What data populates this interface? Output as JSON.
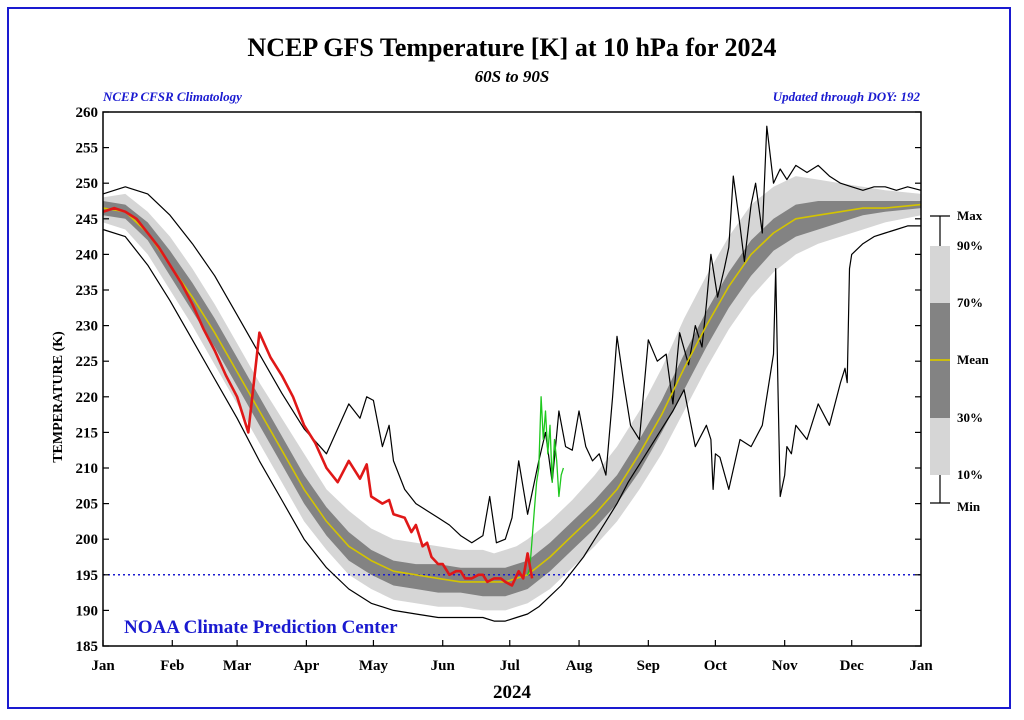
{
  "colors": {
    "frame": "#1a1ad0",
    "blue_text": "#1a1ad0",
    "band_outer": "#d6d6d6",
    "band_inner": "#838383",
    "mean": "#d4c400",
    "observed": "#e01818",
    "forecast": "#1ec81e",
    "reference": "#1a1ad0",
    "extreme": "#000000"
  },
  "chart_data": {
    "type": "line",
    "title": "NCEP GFS Temperature [K] at 10 hPa for 2024",
    "subtitle": "60S to 90S",
    "left_note": "NCEP CFSR Climatology",
    "right_note": "Updated through DOY: 192",
    "watermark": "NOAA Climate Prediction Center",
    "xlabel": "2024",
    "ylabel": "TEMPERATURE (K)",
    "xlim": [
      0,
      366
    ],
    "ylim": [
      185,
      260
    ],
    "y_ticks": [
      185,
      190,
      195,
      200,
      205,
      210,
      215,
      220,
      225,
      230,
      235,
      240,
      245,
      250,
      255,
      260
    ],
    "months": [
      {
        "label": "Jan",
        "doy": 0
      },
      {
        "label": "Feb",
        "doy": 31
      },
      {
        "label": "Mar",
        "doy": 60
      },
      {
        "label": "Apr",
        "doy": 91
      },
      {
        "label": "May",
        "doy": 121
      },
      {
        "label": "Jun",
        "doy": 152
      },
      {
        "label": "Jul",
        "doy": 182
      },
      {
        "label": "Aug",
        "doy": 213
      },
      {
        "label": "Sep",
        "doy": 244
      },
      {
        "label": "Oct",
        "doy": 274
      },
      {
        "label": "Nov",
        "doy": 305
      },
      {
        "label": "Dec",
        "doy": 335
      },
      {
        "label": "Jan",
        "doy": 366
      }
    ],
    "reference_line": 195,
    "legend": {
      "labels": [
        "Max",
        "90%",
        "70%",
        "Mean",
        "30%",
        "10%",
        "Min"
      ]
    },
    "series": [
      {
        "name": "Max",
        "x": [
          0,
          10,
          20,
          30,
          40,
          50,
          60,
          70,
          80,
          90,
          100,
          110,
          115,
          118,
          121,
          125,
          128,
          130,
          135,
          140,
          145,
          150,
          155,
          160,
          165,
          170,
          173,
          176,
          180,
          183,
          186,
          190,
          195,
          198,
          201,
          204,
          207,
          210,
          213,
          216,
          219,
          222,
          225,
          228,
          230,
          233,
          236,
          240,
          244,
          248,
          252,
          255,
          258,
          262,
          265,
          268,
          270,
          272,
          275,
          278,
          280,
          282,
          285,
          287,
          290,
          292,
          295,
          297,
          300,
          303,
          306,
          310,
          315,
          320,
          325,
          330,
          335,
          340,
          345,
          350,
          355,
          360,
          366
        ],
        "y": [
          248.5,
          249.5,
          248.5,
          245.5,
          241.5,
          237,
          231.5,
          226,
          220.5,
          215.5,
          212,
          219,
          217,
          220,
          219.5,
          213,
          216,
          211,
          207,
          205,
          204,
          203,
          202,
          200.5,
          199.5,
          200.5,
          206,
          199.5,
          200,
          203,
          211,
          203.5,
          211,
          215,
          208,
          218,
          213,
          212.5,
          218,
          213,
          211,
          212,
          209,
          220,
          228.5,
          222,
          216,
          214,
          228,
          225,
          226,
          219,
          229,
          224.5,
          230,
          227,
          233,
          240,
          234,
          238,
          241,
          251,
          244,
          239,
          247,
          250,
          243,
          258,
          250,
          252,
          250.5,
          252.5,
          251.5,
          252.5,
          251,
          250,
          249.5,
          249,
          249.5,
          249.5,
          249,
          249.5,
          249
        ]
      },
      {
        "name": "90%",
        "x": [
          0,
          10,
          20,
          30,
          40,
          50,
          60,
          70,
          80,
          90,
          100,
          110,
          120,
          130,
          140,
          150,
          160,
          170,
          175,
          180,
          185,
          190,
          200,
          210,
          220,
          230,
          240,
          250,
          260,
          270,
          280,
          290,
          300,
          310,
          320,
          330,
          340,
          350,
          366
        ],
        "y": [
          248,
          248.5,
          246,
          242.5,
          238,
          233,
          227.5,
          222,
          217,
          212,
          207,
          204,
          201.5,
          200,
          199.5,
          199,
          198.5,
          198.5,
          198,
          198.5,
          199,
          200,
          202.5,
          205.5,
          209,
          213,
          218,
          224,
          231,
          237,
          242.5,
          247,
          249.5,
          251,
          250.5,
          250,
          249.5,
          249,
          248.5
        ]
      },
      {
        "name": "70%",
        "x": [
          0,
          10,
          20,
          30,
          40,
          50,
          60,
          70,
          80,
          90,
          100,
          110,
          120,
          130,
          140,
          150,
          160,
          170,
          175,
          180,
          185,
          190,
          200,
          210,
          220,
          230,
          240,
          250,
          260,
          270,
          280,
          290,
          300,
          310,
          320,
          330,
          340,
          350,
          366
        ],
        "y": [
          247.5,
          247,
          244.5,
          240.5,
          236,
          231,
          225.5,
          220,
          214.5,
          209,
          204.5,
          201,
          198.5,
          197,
          196.5,
          196.5,
          196,
          196,
          196,
          196,
          196.5,
          197,
          199.5,
          202.5,
          205.5,
          209,
          214,
          219.5,
          226,
          232,
          237.5,
          242,
          245,
          247,
          247.5,
          247.5,
          247.5,
          247.5,
          247.5
        ]
      },
      {
        "name": "Mean",
        "x": [
          0,
          10,
          20,
          30,
          40,
          50,
          60,
          70,
          80,
          90,
          100,
          110,
          120,
          130,
          140,
          150,
          160,
          170,
          175,
          180,
          185,
          190,
          200,
          210,
          220,
          230,
          240,
          250,
          260,
          270,
          280,
          290,
          300,
          310,
          320,
          330,
          340,
          350,
          366
        ],
        "y": [
          246.5,
          246,
          243,
          238.5,
          234,
          229,
          223.5,
          218,
          212.5,
          207,
          202.5,
          199,
          197,
          195.5,
          195,
          194.5,
          194,
          194,
          194,
          194,
          194.5,
          195,
          197.5,
          200.5,
          203.5,
          207,
          212,
          217.5,
          224,
          230,
          235.5,
          240,
          243,
          245,
          245.5,
          246,
          246.5,
          246.5,
          247
        ]
      },
      {
        "name": "30%",
        "x": [
          0,
          10,
          20,
          30,
          40,
          50,
          60,
          70,
          80,
          90,
          100,
          110,
          120,
          130,
          140,
          150,
          160,
          170,
          175,
          180,
          185,
          190,
          200,
          210,
          220,
          230,
          240,
          250,
          260,
          270,
          280,
          290,
          300,
          310,
          320,
          330,
          340,
          350,
          366
        ],
        "y": [
          245.5,
          245,
          242,
          237,
          232,
          227,
          221.5,
          216,
          210.5,
          205,
          200.5,
          197,
          195,
          193.5,
          193,
          192.5,
          192.5,
          192,
          192,
          192,
          192.5,
          193,
          195.5,
          198.5,
          201.5,
          205,
          209.5,
          215,
          221,
          227,
          232.5,
          237,
          240.5,
          242.5,
          243.5,
          244.5,
          245.5,
          246,
          246.5
        ]
      },
      {
        "name": "10%",
        "x": [
          0,
          10,
          20,
          30,
          40,
          50,
          60,
          70,
          80,
          90,
          100,
          110,
          120,
          130,
          140,
          150,
          160,
          170,
          175,
          180,
          185,
          190,
          200,
          210,
          220,
          230,
          240,
          250,
          260,
          270,
          280,
          290,
          300,
          310,
          320,
          330,
          340,
          350,
          366
        ],
        "y": [
          244.5,
          243.5,
          240,
          235,
          230,
          224.5,
          219,
          213.5,
          208,
          202.5,
          198.5,
          195,
          193,
          191.5,
          191,
          190.5,
          190.5,
          190,
          190,
          190,
          190.5,
          191,
          193,
          196,
          199,
          202.5,
          207,
          212,
          218,
          224,
          229.5,
          234,
          237.5,
          240,
          241.5,
          242.5,
          243.5,
          244.5,
          245.5
        ]
      },
      {
        "name": "Min",
        "x": [
          0,
          10,
          20,
          30,
          40,
          50,
          60,
          70,
          80,
          90,
          100,
          110,
          120,
          130,
          140,
          150,
          160,
          170,
          175,
          180,
          185,
          190,
          195,
          200,
          205,
          210,
          215,
          220,
          225,
          230,
          235,
          240,
          245,
          250,
          255,
          260,
          265,
          270,
          272,
          273,
          274,
          276,
          280,
          285,
          290,
          295,
          300,
          301,
          302,
          303,
          305,
          306,
          308,
          310,
          315,
          320,
          325,
          330,
          332,
          333,
          334,
          335,
          340,
          345,
          350,
          355,
          360,
          366
        ],
        "y": [
          243.5,
          242.5,
          238.5,
          233.5,
          228,
          222.5,
          217,
          211,
          205.5,
          200,
          196,
          193,
          191,
          190,
          189.5,
          189,
          189,
          189,
          188.5,
          188.5,
          189,
          189.5,
          190.5,
          192,
          193.5,
          195.5,
          197.5,
          200,
          202.5,
          205,
          208,
          210.5,
          213,
          215.5,
          218,
          221,
          213,
          216,
          214,
          207,
          212,
          211.5,
          207,
          214,
          213,
          216,
          226,
          238,
          221,
          206,
          209,
          213,
          212,
          216,
          214,
          219,
          216,
          222,
          224,
          222,
          238,
          240,
          241.5,
          242.5,
          243,
          243.5,
          244,
          244
        ]
      },
      {
        "name": "Observed 2024",
        "x": [
          0,
          5,
          10,
          15,
          20,
          25,
          30,
          35,
          40,
          45,
          50,
          55,
          60,
          65,
          70,
          75,
          80,
          85,
          90,
          95,
          100,
          105,
          110,
          115,
          118,
          120,
          125,
          128,
          130,
          135,
          138,
          140,
          143,
          145,
          147,
          150,
          152,
          155,
          158,
          160,
          162,
          165,
          168,
          170,
          172,
          175,
          178,
          180,
          183,
          186,
          188,
          190,
          192
        ],
        "y": [
          246,
          246.5,
          246,
          245,
          243,
          241,
          238.5,
          236,
          233,
          229.5,
          226.5,
          223,
          220,
          215,
          229,
          225.5,
          223,
          220,
          216,
          213.5,
          210,
          208,
          211,
          208.5,
          210.5,
          206,
          205,
          205.5,
          203.5,
          203,
          201,
          202,
          199,
          199.5,
          197.5,
          196.5,
          196.5,
          195,
          195.5,
          195.5,
          194.5,
          194.5,
          195,
          195,
          194,
          194.5,
          194.5,
          194,
          193.5,
          195.5,
          194.5,
          198,
          194.5
        ]
      },
      {
        "name": "GFS Forecast",
        "x": [
          190,
          191,
          192,
          193,
          194,
          195,
          196,
          197,
          198,
          199,
          200,
          201,
          202,
          203,
          204,
          205,
          206
        ],
        "y": [
          195,
          196,
          200,
          204,
          208,
          210,
          220,
          214,
          218,
          212,
          216,
          208,
          214,
          211,
          206,
          209,
          210
        ]
      }
    ]
  }
}
